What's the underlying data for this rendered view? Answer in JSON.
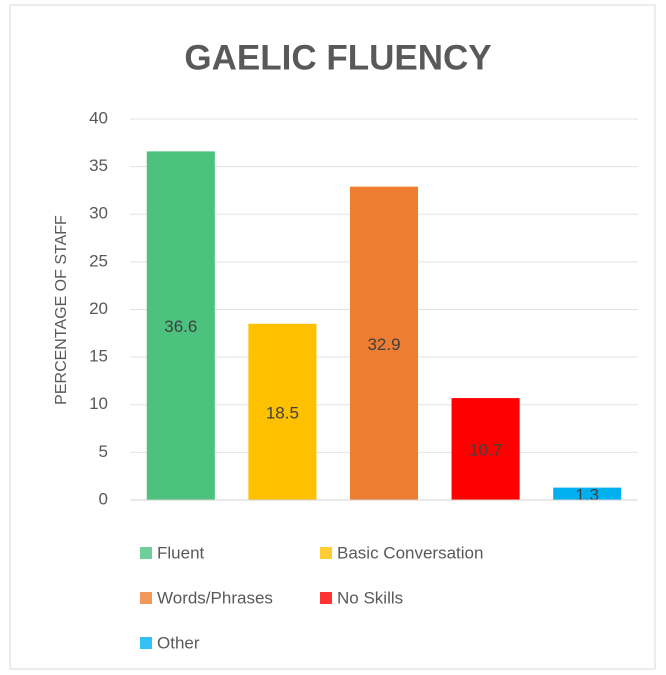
{
  "chart_data": {
    "type": "bar",
    "title": "GAELIC FLUENCY",
    "y_label": "PERCENTAGE OF STAFF",
    "categories": [
      null
    ],
    "series": [
      {
        "name": "Fluent",
        "color": "#4cc27e",
        "values": [
          36.6
        ]
      },
      {
        "name": "Basic Conversation",
        "color": "#ffc000",
        "values": [
          18.5
        ]
      },
      {
        "name": "Words/Phrases",
        "color": "#ed7d31",
        "values": [
          32.9
        ]
      },
      {
        "name": "No Skills",
        "color": "#ff0000",
        "values": [
          10.7
        ]
      },
      {
        "name": "Other",
        "color": "#00b0f0",
        "values": [
          1.3
        ]
      }
    ],
    "ylim": [
      0,
      40
    ],
    "yticks": [
      0,
      5,
      10,
      15,
      20,
      25,
      30,
      35,
      40
    ],
    "grid": true,
    "data_labels": true,
    "legend": "bottom"
  }
}
